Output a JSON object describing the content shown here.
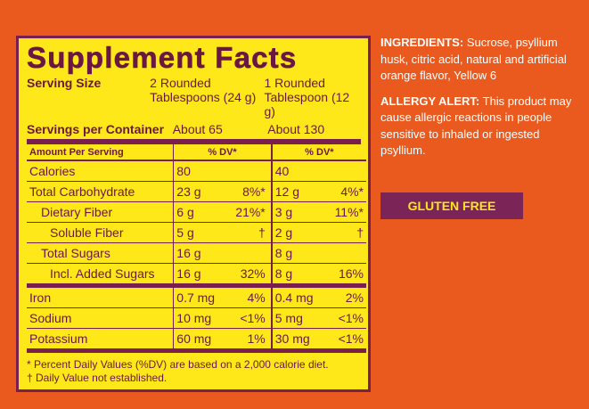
{
  "panel": {
    "title": "Supplement Facts",
    "serving_size": {
      "label": "Serving Size",
      "col1": "2 Rounded Tablespoons (24 g)",
      "col2": "1 Rounded Tablespoon (12 g)"
    },
    "servings": {
      "label": "Servings per Container",
      "col1": "About 65",
      "col2": "About 130"
    },
    "header": {
      "label": "Amount Per Serving",
      "col1": "% DV*",
      "col2": "% DV*"
    },
    "rows": [
      [
        "Calories",
        "80",
        null,
        "40",
        null
      ],
      [
        "Total Carbohydrate",
        "23 g",
        "8%*",
        "12 g",
        "4%*"
      ],
      [
        "Dietary Fiber",
        "6 g",
        "21%*",
        "3 g",
        "11%*"
      ],
      [
        "Soluble Fiber",
        "5 g",
        "†",
        "2 g",
        "†"
      ],
      [
        "Total Sugars",
        "16 g",
        null,
        "8 g",
        null
      ],
      [
        "Incl. Added Sugars",
        "16 g",
        "32%",
        "8 g",
        "16%"
      ],
      [
        "Iron",
        "0.7 mg",
        "4%",
        "0.4 mg",
        "2%"
      ],
      [
        "Sodium",
        "10 mg",
        "<1%",
        "5 mg",
        "<1%"
      ],
      [
        "Potassium",
        "60 mg",
        "1%",
        "30 mg",
        "<1%"
      ]
    ],
    "footnotes": [
      "* Percent Daily Values (%DV) are based on a 2,000 calorie diet.",
      "† Daily Value not established."
    ]
  },
  "ingredients": {
    "label": "INGREDIENTS:",
    "text": "Sucrose, psyllium husk, citric acid, natural and artificial orange flavor, Yellow 6"
  },
  "allergy": {
    "label": "ALLERGY ALERT:",
    "text": "This product may cause allergic reactions in people sensitive to inhaled or ingested psyllium."
  },
  "badge": "GLUTEN FREE"
}
